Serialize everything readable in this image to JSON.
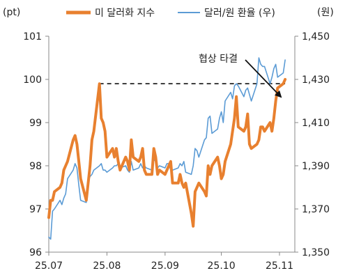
{
  "chart_data": {
    "type": "line",
    "title": "",
    "units": {
      "left": "(pt)",
      "right": "(원)"
    },
    "x_ticks": [
      "25.07",
      "25.08",
      "25.09",
      "25.10",
      "25.11"
    ],
    "y_left": {
      "range": [
        96,
        101
      ],
      "ticks": [
        "96",
        "97",
        "98",
        "99",
        "100",
        "101"
      ]
    },
    "y_right": {
      "range": [
        1350,
        1450
      ],
      "ticks": [
        "1,350",
        "1,370",
        "1,390",
        "1,410",
        "1,430",
        "1,450"
      ]
    },
    "series": [
      {
        "name": "미 달러화 지수",
        "axis": "left",
        "color": "#E8802F",
        "x": [
          "2025-07-01",
          "2025-07-02",
          "2025-07-03",
          "2025-07-04",
          "2025-07-07",
          "2025-07-08",
          "2025-07-09",
          "2025-07-10",
          "2025-07-11",
          "2025-07-14",
          "2025-07-15",
          "2025-07-16",
          "2025-07-17",
          "2025-07-18",
          "2025-07-21",
          "2025-07-22",
          "2025-07-23",
          "2025-07-24",
          "2025-07-25",
          "2025-07-28",
          "2025-07-29",
          "2025-07-30",
          "2025-07-31",
          "2025-08-01",
          "2025-08-04",
          "2025-08-05",
          "2025-08-06",
          "2025-08-07",
          "2025-08-08",
          "2025-08-11",
          "2025-08-12",
          "2025-08-13",
          "2025-08-14",
          "2025-08-15",
          "2025-08-18",
          "2025-08-19",
          "2025-08-20",
          "2025-08-21",
          "2025-08-22",
          "2025-08-25",
          "2025-08-26",
          "2025-08-27",
          "2025-08-28",
          "2025-08-29",
          "2025-09-01",
          "2025-09-02",
          "2025-09-03",
          "2025-09-04",
          "2025-09-05",
          "2025-09-08",
          "2025-09-09",
          "2025-09-10",
          "2025-09-11",
          "2025-09-12",
          "2025-09-15",
          "2025-09-16",
          "2025-09-17",
          "2025-09-18",
          "2025-09-19",
          "2025-09-22",
          "2025-09-23",
          "2025-09-24",
          "2025-09-25",
          "2025-09-26",
          "2025-09-29",
          "2025-09-30",
          "2025-10-01",
          "2025-10-02",
          "2025-10-03",
          "2025-10-06",
          "2025-10-07",
          "2025-10-08",
          "2025-10-09",
          "2025-10-10",
          "2025-10-13",
          "2025-10-14",
          "2025-10-15",
          "2025-10-16",
          "2025-10-17",
          "2025-10-20",
          "2025-10-21",
          "2025-10-22",
          "2025-10-23",
          "2025-10-24",
          "2025-10-27",
          "2025-10-28",
          "2025-10-29",
          "2025-10-30",
          "2025-10-31",
          "2025-11-03",
          "2025-11-04"
        ],
        "values": [
          96.8,
          97.2,
          97.2,
          97.4,
          97.5,
          97.6,
          97.9,
          98.0,
          98.1,
          98.6,
          98.7,
          98.5,
          98.1,
          97.7,
          97.2,
          97.6,
          98.0,
          98.6,
          98.8,
          99.9,
          99.1,
          99.0,
          98.8,
          98.2,
          98.4,
          98.2,
          98.4,
          98.1,
          97.9,
          98.2,
          98.1,
          97.9,
          98.6,
          98.2,
          98.1,
          98.2,
          98.4,
          97.9,
          97.8,
          97.8,
          98.4,
          98.2,
          97.8,
          97.9,
          97.8,
          97.9,
          98.0,
          98.1,
          97.6,
          97.6,
          97.8,
          97.6,
          97.5,
          97.6,
          96.9,
          96.6,
          97.4,
          97.5,
          97.6,
          97.4,
          97.3,
          98.0,
          97.8,
          98.0,
          98.2,
          98.0,
          97.7,
          97.8,
          98.1,
          98.5,
          98.8,
          99.1,
          99.6,
          98.9,
          98.8,
          98.9,
          99.2,
          98.5,
          98.4,
          98.5,
          98.6,
          98.9,
          98.9,
          98.8,
          99.0,
          98.8,
          99.1,
          99.5,
          99.8,
          99.9,
          100.0
        ]
      },
      {
        "name": "달러/원 환율 (우)",
        "axis": "right",
        "color": "#5B9BD5",
        "x": [
          "2025-07-01",
          "2025-07-02",
          "2025-07-03",
          "2025-07-04",
          "2025-07-07",
          "2025-07-08",
          "2025-07-09",
          "2025-07-10",
          "2025-07-11",
          "2025-07-14",
          "2025-07-15",
          "2025-07-16",
          "2025-07-17",
          "2025-07-18",
          "2025-07-21",
          "2025-07-22",
          "2025-07-23",
          "2025-07-24",
          "2025-07-25",
          "2025-07-28",
          "2025-07-29",
          "2025-07-30",
          "2025-07-31",
          "2025-08-01",
          "2025-08-04",
          "2025-08-05",
          "2025-08-06",
          "2025-08-07",
          "2025-08-08",
          "2025-08-11",
          "2025-08-12",
          "2025-08-13",
          "2025-08-14",
          "2025-08-15",
          "2025-08-18",
          "2025-08-19",
          "2025-08-20",
          "2025-08-21",
          "2025-08-22",
          "2025-08-25",
          "2025-08-26",
          "2025-08-27",
          "2025-08-28",
          "2025-08-29",
          "2025-09-01",
          "2025-09-02",
          "2025-09-03",
          "2025-09-04",
          "2025-09-05",
          "2025-09-08",
          "2025-09-09",
          "2025-09-10",
          "2025-09-11",
          "2025-09-12",
          "2025-09-15",
          "2025-09-16",
          "2025-09-17",
          "2025-09-18",
          "2025-09-19",
          "2025-09-22",
          "2025-09-23",
          "2025-09-24",
          "2025-09-25",
          "2025-09-26",
          "2025-09-29",
          "2025-09-30",
          "2025-10-01",
          "2025-10-02",
          "2025-10-03",
          "2025-10-06",
          "2025-10-07",
          "2025-10-08",
          "2025-10-09",
          "2025-10-10",
          "2025-10-13",
          "2025-10-14",
          "2025-10-15",
          "2025-10-16",
          "2025-10-17",
          "2025-10-20",
          "2025-10-21",
          "2025-10-22",
          "2025-10-23",
          "2025-10-24",
          "2025-10-27",
          "2025-10-28",
          "2025-10-29",
          "2025-10-30",
          "2025-10-31",
          "2025-11-03",
          "2025-11-04"
        ],
        "values": [
          1357,
          1356,
          1369,
          1370,
          1374,
          1372,
          1375,
          1377,
          1384,
          1388,
          1391,
          1389,
          1381,
          1374,
          1373,
          1383,
          1385,
          1386,
          1388,
          1390,
          1391,
          1388,
          1388,
          1387,
          1389,
          1390,
          1390,
          1391,
          1389,
          1390,
          1388,
          1387,
          1392,
          1388,
          1389,
          1391,
          1389,
          1390,
          1389,
          1388,
          1393,
          1392,
          1389,
          1390,
          1389,
          1391,
          1391,
          1388,
          1388,
          1389,
          1391,
          1390,
          1392,
          1387,
          1386,
          1390,
          1398,
          1397,
          1394,
          1402,
          1403,
          1412,
          1413,
          1405,
          1407,
          1412,
          1415,
          1410,
          1420,
          1424,
          1421,
          1427,
          1428,
          1427,
          1422,
          1425,
          1426,
          1423,
          1420,
          1428,
          1440,
          1437,
          1436,
          1436,
          1428,
          1431,
          1435,
          1437,
          1431,
          1433,
          1439
        ]
      }
    ],
    "reference_line": {
      "axis": "left",
      "value": 99.9,
      "from": "2025-07-28",
      "to": "2025-11-04",
      "style": "dashed"
    },
    "annotation": {
      "text": "협상 타결",
      "points_to": "2025-10-29"
    },
    "legend_placement": "top",
    "grid": false
  }
}
